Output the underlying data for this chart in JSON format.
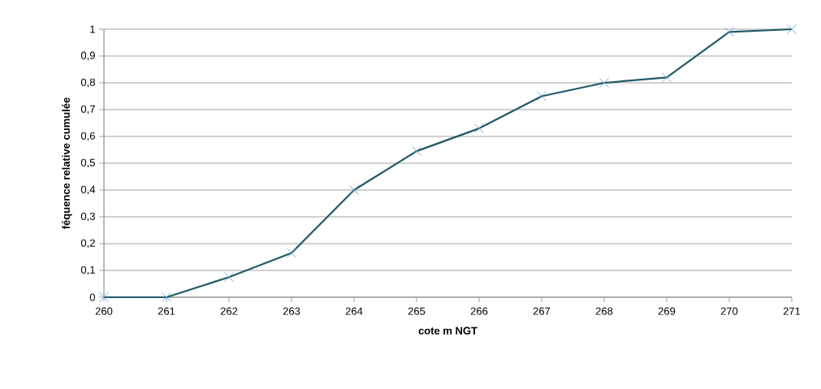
{
  "chart_data": {
    "type": "line",
    "xlabel": "cote m NGT",
    "ylabel": "féquence relative cumulée",
    "categories": [
      "260",
      "261",
      "262",
      "263",
      "264",
      "265",
      "266",
      "267",
      "268",
      "269",
      "270",
      "271"
    ],
    "series": [
      {
        "color": "#215968",
        "values": [
          0,
          0,
          0.075,
          0.165,
          0.4,
          0.545,
          0.63,
          0.75,
          0.8,
          0.82,
          0.99,
          1.0
        ]
      }
    ],
    "ylim": [
      0,
      1
    ],
    "yticks": [
      0,
      {
        "value": 0.1,
        "label": "0,1"
      },
      {
        "value": 0.2,
        "label": "0,2"
      },
      {
        "value": 0.3,
        "label": "0,3"
      },
      {
        "value": 0.4,
        "label": "0,4"
      },
      {
        "value": 0.5,
        "label": "0,5"
      },
      {
        "value": 0.6,
        "label": "0,6"
      },
      {
        "value": 0.7,
        "label": "0,7"
      },
      {
        "value": 0.8,
        "label": "0,8"
      },
      {
        "value": 0.9,
        "label": "0,9"
      },
      1
    ],
    "grid": "y",
    "marker": "cross",
    "line_style": "solid"
  }
}
